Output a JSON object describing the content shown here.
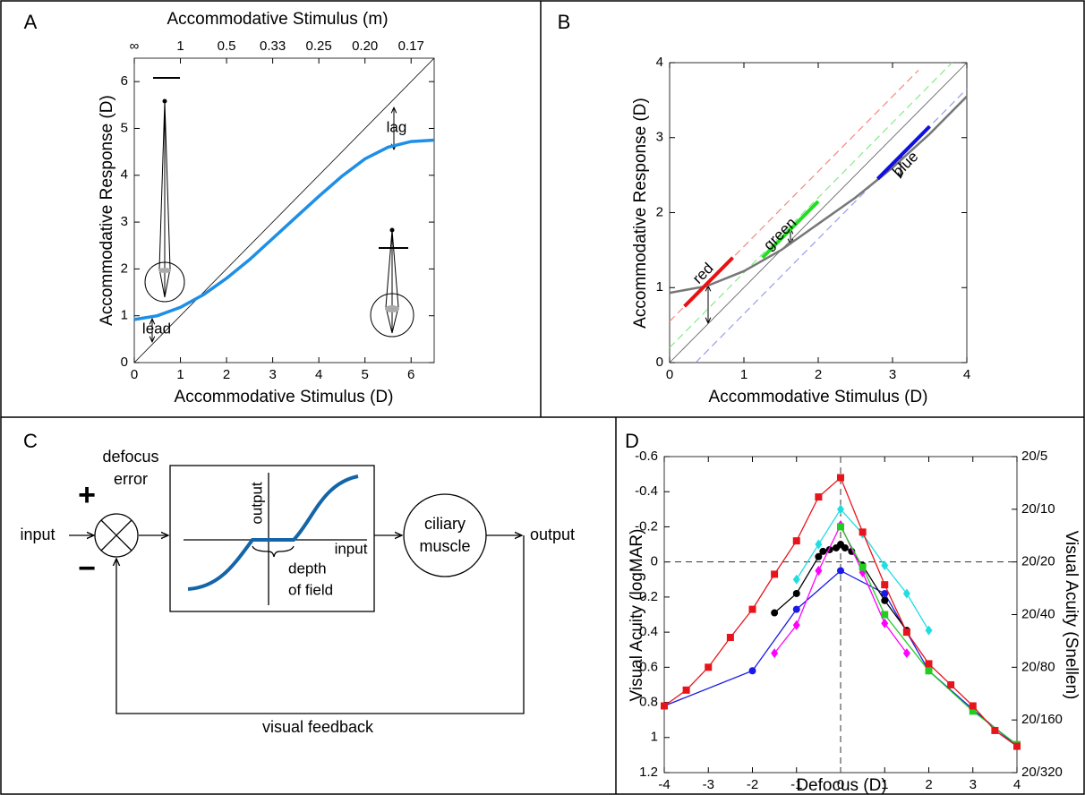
{
  "panels": [
    "A",
    "B",
    "C",
    "D"
  ],
  "chart_data": [
    {
      "type": "line",
      "xlabel": "Accommodative Stimulus (D)",
      "ylabel": "Accommodative Response (D)",
      "x2label": "Accommodative Stimulus (m)",
      "xlim": [
        0,
        6.5
      ],
      "ylim": [
        0,
        6.5
      ],
      "xticks": [
        0,
        1,
        2,
        3,
        4,
        5,
        6
      ],
      "yticks": [
        0,
        1,
        2,
        3,
        4,
        5,
        6
      ],
      "x2lim": [
        0,
        6.5
      ],
      "x2ticks": [
        {
          "value": 0,
          "label": "∞"
        },
        1,
        {
          "value": 2,
          "label": "0.5"
        },
        {
          "value": 3,
          "label": "0.33"
        },
        {
          "value": 4,
          "label": "0.25"
        },
        {
          "value": 5,
          "label": "0.20"
        },
        {
          "value": 6,
          "label": "0.17"
        }
      ],
      "annotations": [
        "lag",
        "lead"
      ],
      "series": [
        {
          "color": "#000000",
          "linewidth": 0.8,
          "x": [
            0,
            6.5
          ],
          "values": [
            0,
            6.5
          ]
        },
        {
          "color": "#1e8fe6",
          "linewidth": 3.5,
          "x": [
            0,
            0.5,
            1,
            1.5,
            2,
            2.5,
            3,
            3.5,
            4,
            4.5,
            5,
            5.5,
            6,
            6.5
          ],
          "values": [
            0.92,
            1.0,
            1.18,
            1.45,
            1.8,
            2.2,
            2.65,
            3.1,
            3.55,
            3.98,
            4.35,
            4.6,
            4.72,
            4.75
          ]
        }
      ]
    },
    {
      "type": "line",
      "xlabel": "Accommodative Stimulus (D)",
      "ylabel": "Accommodative Response (D)",
      "xlim": [
        0,
        4
      ],
      "ylim": [
        0,
        4
      ],
      "xticks": [
        0,
        1,
        2,
        3,
        4
      ],
      "yticks": [
        0,
        1,
        2,
        3,
        4
      ],
      "annotations": [
        "red",
        "green",
        "blue"
      ],
      "series": [
        {
          "color": "#f08a80",
          "linewidth": 1.2,
          "linestyle": "dashed",
          "x": [
            0,
            3.35
          ],
          "values": [
            0.55,
            3.9
          ]
        },
        {
          "color": "#88e888",
          "linewidth": 1.2,
          "linestyle": "dashed",
          "x": [
            0,
            3.8
          ],
          "values": [
            0.2,
            4
          ]
        },
        {
          "color": "#9a9af0",
          "linewidth": 1.2,
          "linestyle": "dashed",
          "x": [
            0.35,
            4
          ],
          "values": [
            0,
            3.65
          ]
        },
        {
          "color": "#555555",
          "linewidth": 0.8,
          "x": [
            0,
            4
          ],
          "values": [
            0,
            4
          ]
        },
        {
          "color": "#777777",
          "linewidth": 2.5,
          "x": [
            0,
            0.5,
            1,
            1.5,
            2,
            2.5,
            3,
            3.5,
            4
          ],
          "values": [
            0.93,
            1.02,
            1.22,
            1.5,
            1.85,
            2.2,
            2.6,
            3.05,
            3.55
          ]
        },
        {
          "color": "#e81010",
          "linewidth": 4,
          "x": [
            0.2,
            0.85
          ],
          "values": [
            0.75,
            1.4
          ]
        },
        {
          "color": "#22dd22",
          "linewidth": 4,
          "x": [
            1.25,
            2
          ],
          "values": [
            1.4,
            2.15
          ]
        },
        {
          "color": "#1010e0",
          "linewidth": 4,
          "x": [
            2.8,
            3.5
          ],
          "values": [
            2.45,
            3.15
          ]
        }
      ]
    },
    {
      "type": "line",
      "xlabel": "Defocus (D)",
      "ylabel": "Visual Acuity (logMAR)",
      "y2label": "Visual Acuity (Snellen)",
      "xlim": [
        -4,
        4
      ],
      "ylim": [
        -0.6,
        1.2
      ],
      "yreverse": true,
      "xticks": [
        -4,
        -3,
        -2,
        -1,
        0,
        1,
        2,
        3,
        4
      ],
      "yticks": [
        -0.6,
        -0.4,
        -0.2,
        0,
        0.2,
        0.4,
        0.6,
        0.8,
        1,
        1.2
      ],
      "y2lim": [
        -0.6,
        1.2
      ],
      "y2ticks": [
        {
          "value": -0.6,
          "label": "20/5"
        },
        {
          "value": -0.3,
          "label": "20/10"
        },
        {
          "value": 0,
          "label": "20/20"
        },
        {
          "value": 0.3,
          "label": "20/40"
        },
        {
          "value": 0.6,
          "label": "20/80"
        },
        {
          "value": 0.9,
          "label": "20/160"
        },
        {
          "value": 1.2,
          "label": "20/320"
        }
      ],
      "reference_lines": {
        "x": 0,
        "y": 0
      },
      "series": [
        {
          "color": "#1a1ae6",
          "marker": "circle",
          "linewidth": 1.3,
          "x": [
            -4,
            -2,
            -1,
            0,
            1,
            2,
            3,
            4
          ],
          "values": [
            0.82,
            0.62,
            0.27,
            0.05,
            0.18,
            0.62,
            0.84,
            1.05
          ]
        },
        {
          "color": "#000000",
          "marker": "circle",
          "linewidth": 1.3,
          "x": [
            -1.5,
            -1,
            -0.5,
            -0.4,
            -0.25,
            -0.1,
            0,
            0.1,
            0.25,
            0.5,
            1,
            1.5
          ],
          "values": [
            0.29,
            0.18,
            -0.03,
            -0.06,
            -0.07,
            -0.08,
            -0.1,
            -0.08,
            -0.06,
            0.02,
            0.22,
            0.39
          ]
        },
        {
          "color": "#ff00ff",
          "marker": "diamond",
          "linewidth": 1.3,
          "x": [
            -1.5,
            -1,
            -0.5,
            0,
            0.5,
            1,
            1.5
          ],
          "values": [
            0.52,
            0.36,
            0.05,
            -0.21,
            0.06,
            0.35,
            0.52
          ]
        },
        {
          "color": "#22dde0",
          "marker": "diamond",
          "linewidth": 1.3,
          "x": [
            -1,
            -0.5,
            0,
            0.5,
            1,
            1.5,
            2
          ],
          "values": [
            0.1,
            -0.1,
            -0.3,
            -0.16,
            0.02,
            0.18,
            0.39
          ]
        },
        {
          "color": "#22cc22",
          "marker": "square",
          "linewidth": 1.3,
          "x": [
            0,
            0.5,
            1,
            2,
            3,
            4
          ],
          "values": [
            -0.2,
            0.03,
            0.3,
            0.62,
            0.85,
            1.04
          ]
        },
        {
          "color": "#e8141b",
          "marker": "square",
          "linewidth": 1.3,
          "x": [
            -4,
            -3.5,
            -3,
            -2.5,
            -2,
            -1.5,
            -1,
            -0.5,
            0,
            0.5,
            1,
            1.5,
            2,
            2.5,
            3,
            3.5,
            4
          ],
          "values": [
            0.82,
            0.73,
            0.6,
            0.43,
            0.27,
            0.07,
            -0.12,
            -0.37,
            -0.48,
            -0.17,
            0.13,
            0.4,
            0.58,
            0.7,
            0.82,
            0.96,
            1.05
          ]
        }
      ]
    }
  ],
  "diagram": {
    "input": "input",
    "sum_label": [
      "defocus",
      "error"
    ],
    "plus": "+",
    "minus": "−",
    "box_y_label": "output",
    "box_x_label": "input",
    "dof_label": [
      "depth",
      "of field"
    ],
    "muscle_label": [
      "ciliary",
      "muscle"
    ],
    "output": "output",
    "feedback": "visual feedback"
  }
}
